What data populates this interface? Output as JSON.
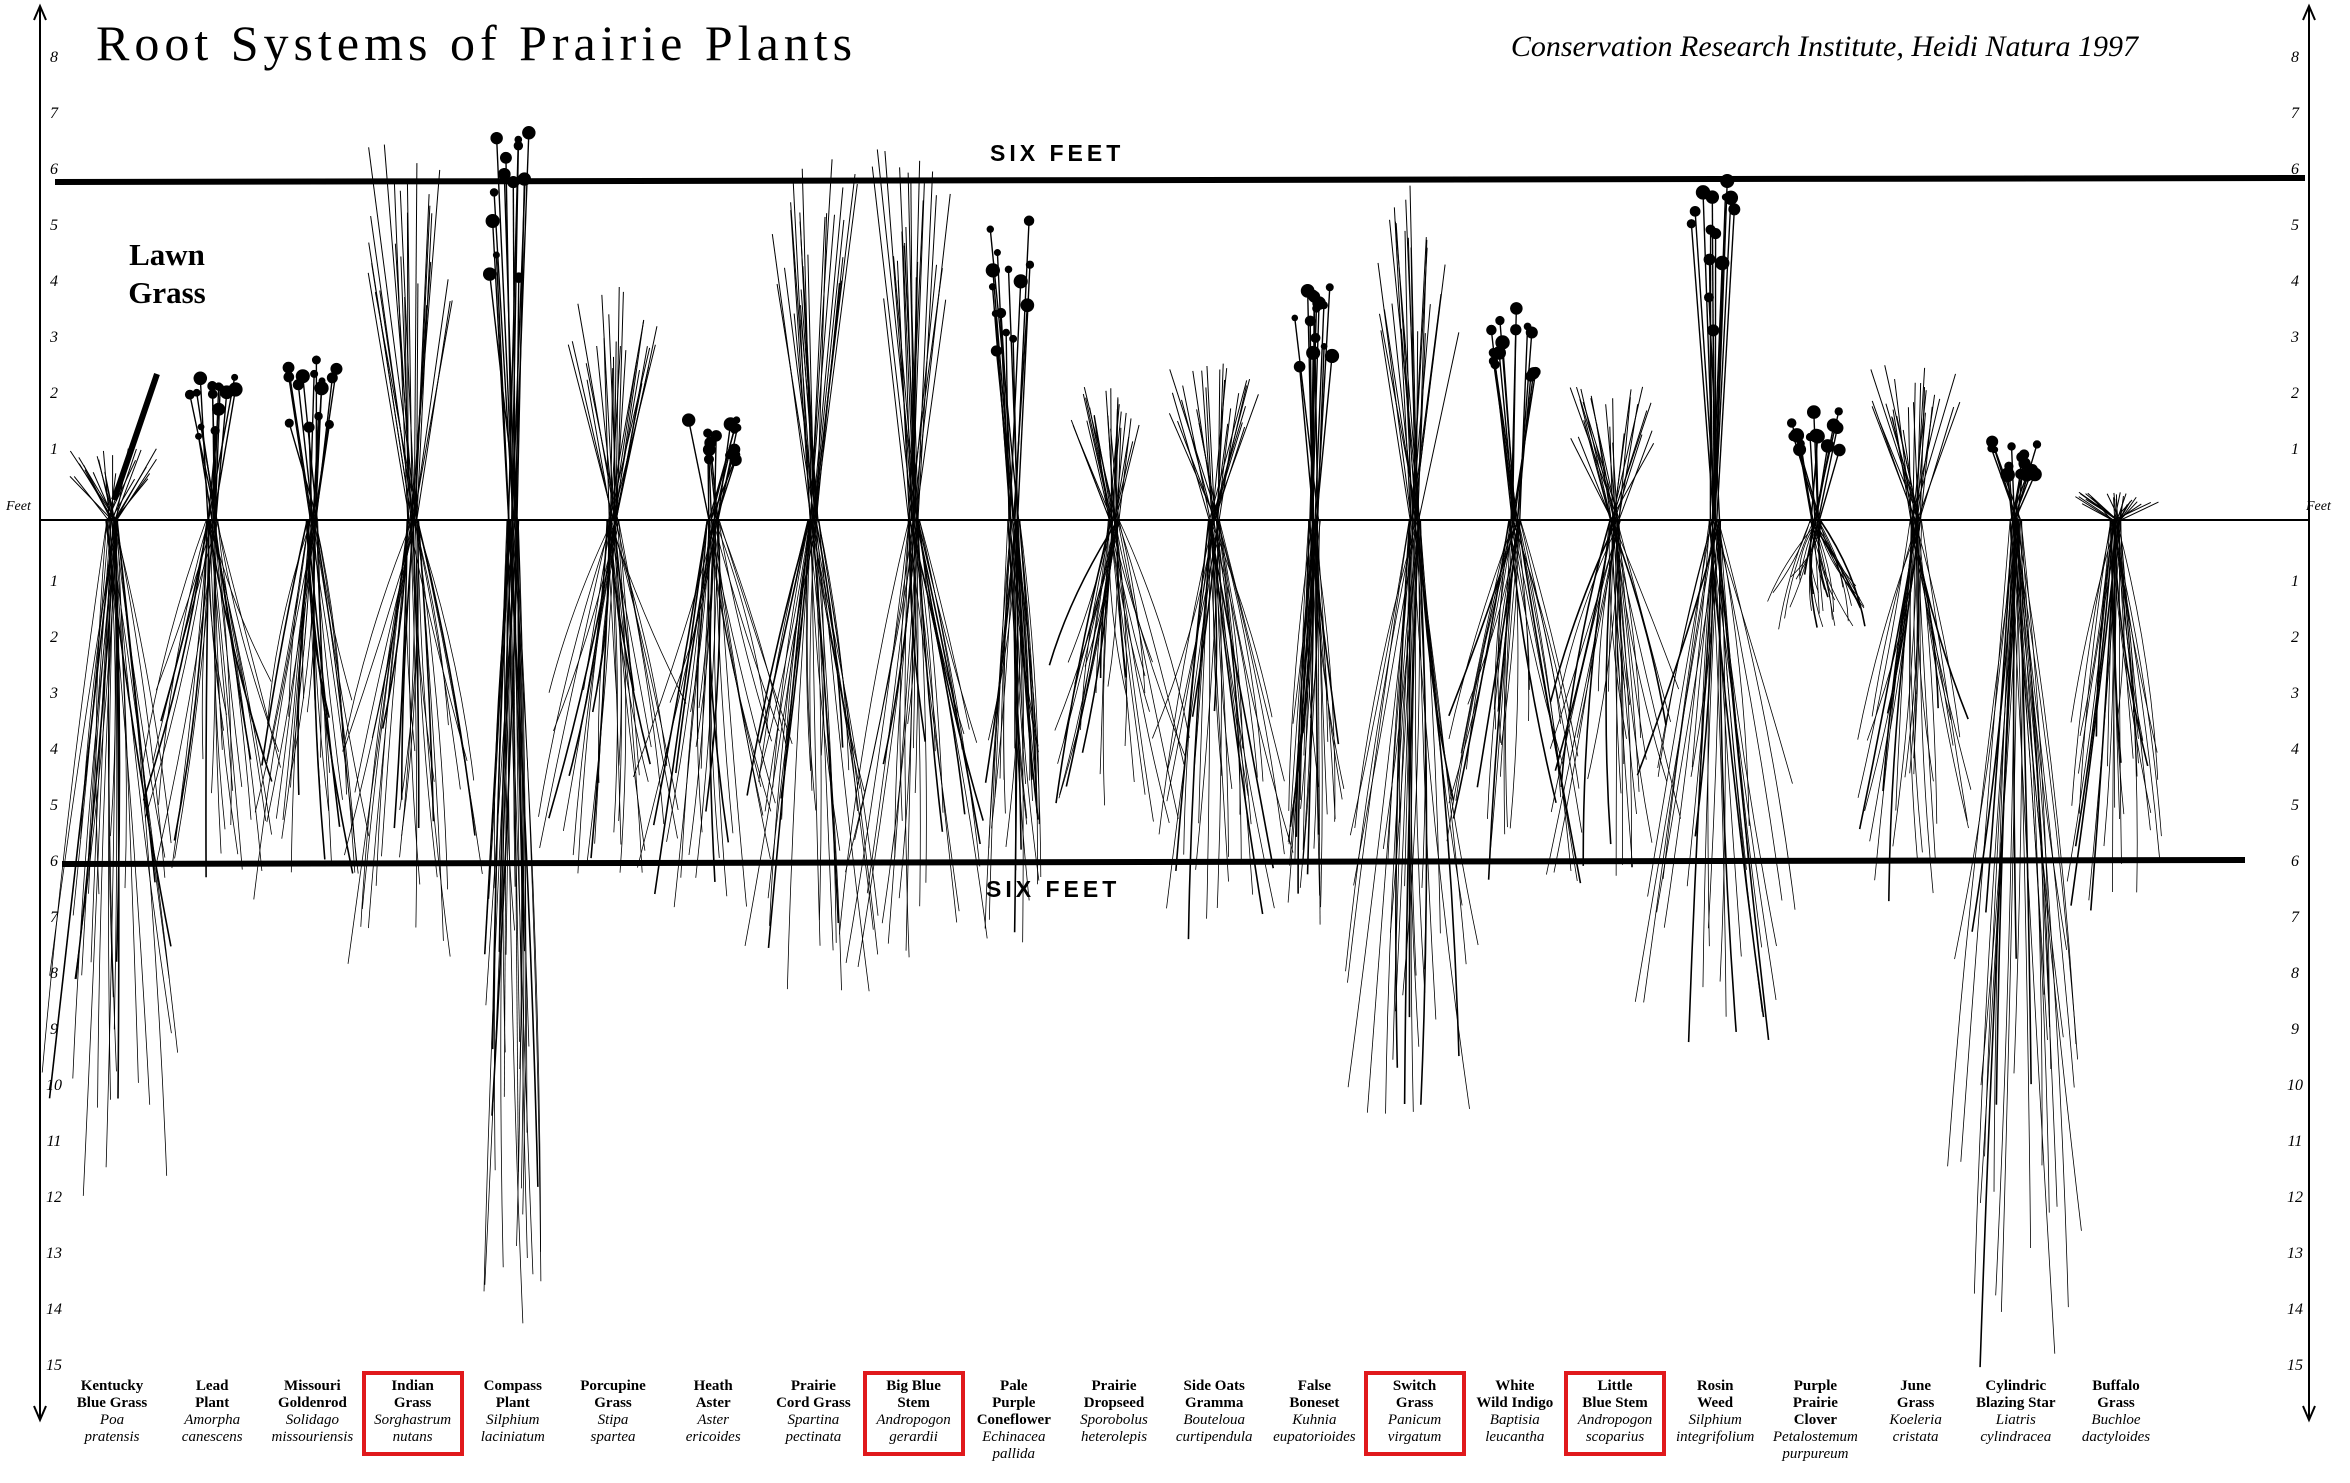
{
  "title": "Root Systems of Prairie Plants",
  "credit": "Conservation Research Institute, Heidi Natura 1997",
  "lawn_grass_label": [
    "Lawn",
    "Grass"
  ],
  "six_feet_label": "SIX FEET",
  "axis": {
    "unit_label": "Feet",
    "above_ticks": [
      "1",
      "2",
      "3",
      "4",
      "5",
      "6",
      "7",
      "8"
    ],
    "below_ticks": [
      "1",
      "2",
      "3",
      "4",
      "5",
      "6",
      "7",
      "8",
      "9",
      "10",
      "11",
      "12",
      "13",
      "14",
      "15"
    ]
  },
  "highlight_color": "#e0191c",
  "plants": [
    {
      "common": [
        "Kentucky",
        "Blue Grass"
      ],
      "scientific": [
        "Poa",
        "pratensis"
      ],
      "highlighted": false
    },
    {
      "common": [
        "Lead",
        "Plant"
      ],
      "scientific": [
        "Amorpha",
        "canescens"
      ],
      "highlighted": false
    },
    {
      "common": [
        "Missouri",
        "Goldenrod"
      ],
      "scientific": [
        "Solidago",
        "missouriensis"
      ],
      "highlighted": false
    },
    {
      "common": [
        "Indian",
        "Grass"
      ],
      "scientific": [
        "Sorghastrum",
        "nutans"
      ],
      "highlighted": true
    },
    {
      "common": [
        "Compass",
        "Plant"
      ],
      "scientific": [
        "Silphium",
        "laciniatum"
      ],
      "highlighted": false
    },
    {
      "common": [
        "Porcupine",
        "Grass"
      ],
      "scientific": [
        "Stipa",
        "spartea"
      ],
      "highlighted": false
    },
    {
      "common": [
        "Heath",
        "Aster"
      ],
      "scientific": [
        "Aster",
        "ericoides"
      ],
      "highlighted": false
    },
    {
      "common": [
        "Prairie",
        "Cord Grass"
      ],
      "scientific": [
        "Spartina",
        "pectinata"
      ],
      "highlighted": false
    },
    {
      "common": [
        "Big Blue",
        "Stem"
      ],
      "scientific": [
        "Andropogon",
        "gerardii"
      ],
      "highlighted": true
    },
    {
      "common": [
        "Pale",
        "Purple",
        "Coneflower"
      ],
      "scientific": [
        "Echinacea",
        "pallida"
      ],
      "highlighted": false
    },
    {
      "common": [
        "Prairie",
        "Dropseed"
      ],
      "scientific": [
        "Sporobolus",
        "heterolepis"
      ],
      "highlighted": false
    },
    {
      "common": [
        "Side Oats",
        "Gramma"
      ],
      "scientific": [
        "Bouteloua",
        "curtipendula"
      ],
      "highlighted": false
    },
    {
      "common": [
        "False",
        "Boneset"
      ],
      "scientific": [
        "Kuhnia",
        "eupatorioides"
      ],
      "highlighted": false
    },
    {
      "common": [
        "Switch",
        "Grass"
      ],
      "scientific": [
        "Panicum",
        "virgatum"
      ],
      "highlighted": true
    },
    {
      "common": [
        "White",
        "Wild Indigo"
      ],
      "scientific": [
        "Baptisia",
        "leucantha"
      ],
      "highlighted": false
    },
    {
      "common": [
        "Little",
        "Blue Stem"
      ],
      "scientific": [
        "Andropogon",
        "scoparius"
      ],
      "highlighted": true
    },
    {
      "common": [
        "Rosin",
        "Weed"
      ],
      "scientific": [
        "Silphium",
        "integrifolium"
      ],
      "highlighted": false
    },
    {
      "common": [
        "Purple",
        "Prairie",
        "Clover"
      ],
      "scientific": [
        "Petalostemum",
        "purpureum"
      ],
      "highlighted": false
    },
    {
      "common": [
        "June",
        "Grass"
      ],
      "scientific": [
        "Koeleria",
        "cristata"
      ],
      "highlighted": false
    },
    {
      "common": [
        "Cylindric",
        "Blazing Star"
      ],
      "scientific": [
        "Liatris",
        "cylindracea"
      ],
      "highlighted": false
    },
    {
      "common": [
        "Buffalo",
        "Grass"
      ],
      "scientific": [
        "Buchloe",
        "dactyloides"
      ],
      "highlighted": false
    }
  ]
}
